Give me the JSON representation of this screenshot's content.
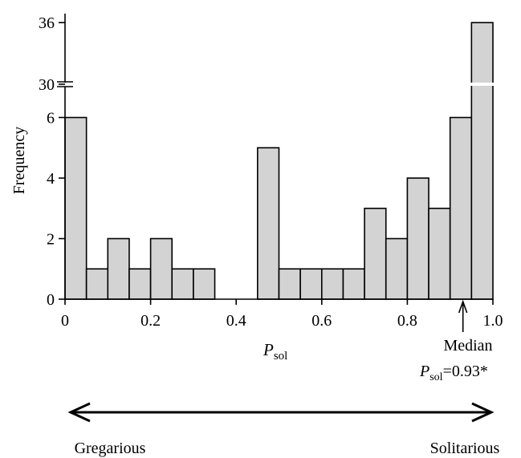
{
  "chart_data": {
    "type": "bar",
    "xlabel_main": "P",
    "xlabel_sub": "sol",
    "ylabel": "Frequency",
    "bin_width": 0.05,
    "bin_starts": [
      0,
      0.05,
      0.1,
      0.15,
      0.2,
      0.25,
      0.3,
      0.35,
      0.4,
      0.45,
      0.5,
      0.55,
      0.6,
      0.65,
      0.7,
      0.75,
      0.8,
      0.85,
      0.9,
      0.95
    ],
    "values": [
      6,
      1,
      2,
      1,
      2,
      1,
      1,
      0,
      0,
      5,
      1,
      1,
      1,
      1,
      3,
      2,
      4,
      3,
      6,
      36
    ],
    "xlim": [
      0,
      1.0
    ],
    "ylim_lower": [
      0,
      7
    ],
    "ylim_upper": [
      30,
      36
    ],
    "axis_break": true,
    "x_ticks": [
      0,
      0.2,
      0.4,
      0.6,
      0.8,
      1.0
    ],
    "x_tick_labels": [
      "0",
      "0.2",
      "0.4",
      "0.6",
      "0.8",
      "1.0"
    ],
    "y_ticks_lower": [
      0,
      2,
      4,
      6
    ],
    "y_tick_labels_lower": [
      "0",
      "2",
      "4",
      "6"
    ],
    "y_ticks_upper": [
      30,
      36
    ],
    "y_tick_labels_upper": [
      "30",
      "36"
    ],
    "bar_color": "#d3d3d3",
    "edge_color": "#000000",
    "median": {
      "value": 0.93,
      "label": "Median",
      "p_main": "P",
      "p_sub": "sol",
      "p_suffix": "=0.93*"
    },
    "scale": {
      "left_label": "Gregarious",
      "right_label": "Solitarious"
    }
  }
}
